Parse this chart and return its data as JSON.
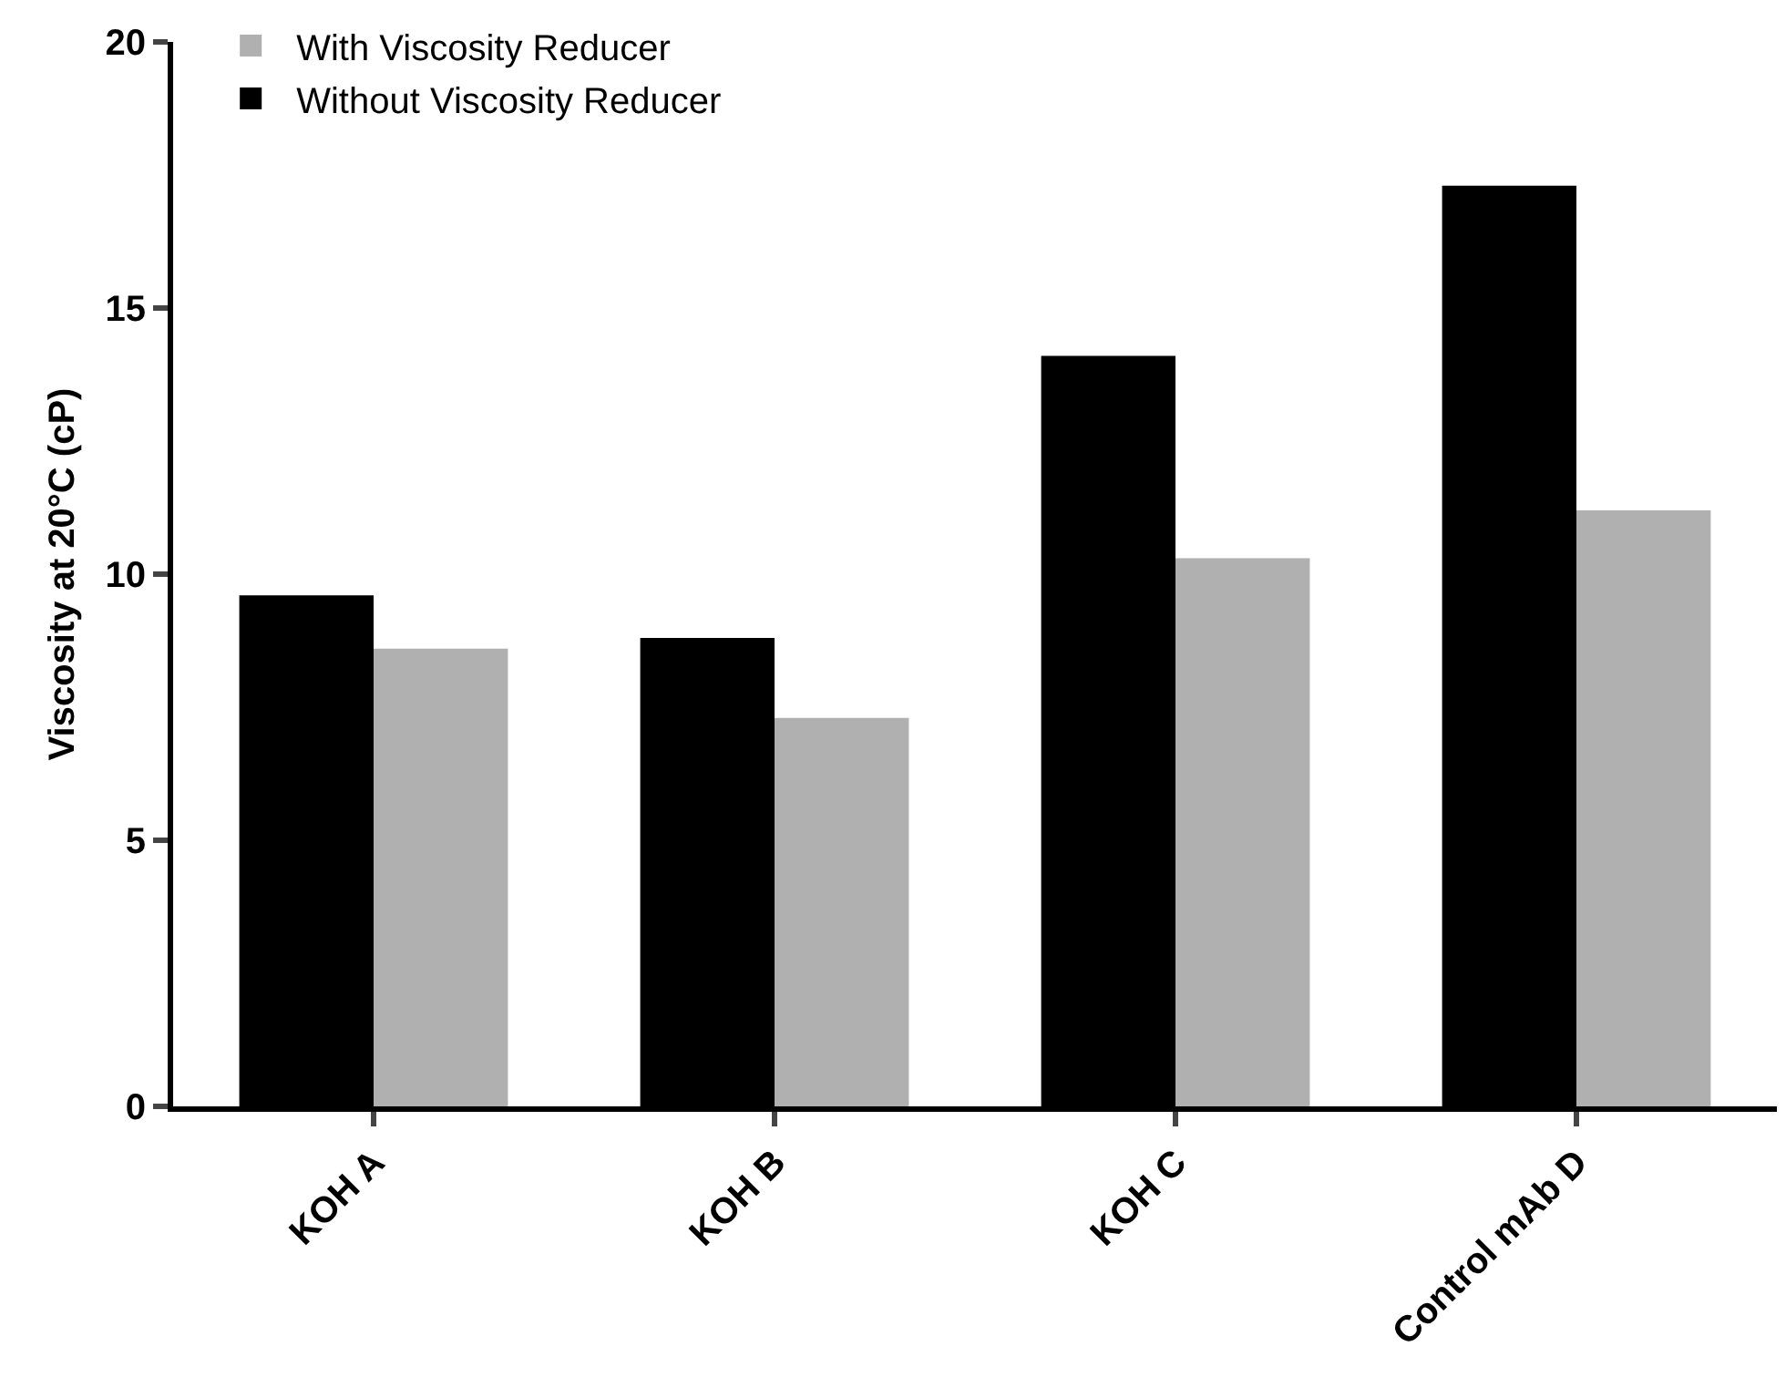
{
  "chart_data": {
    "type": "bar",
    "ylabel": "Viscosity at 20°C (cP)",
    "categories": [
      "KOH A",
      "KOH B",
      "KOH C",
      "Control mAb D"
    ],
    "series": [
      {
        "name": "Without Viscosity Reducer",
        "color": "#000000",
        "values": [
          9.6,
          8.8,
          14.1,
          17.3
        ]
      },
      {
        "name": "With Viscosity Reducer",
        "color": "#b0b0b0",
        "values": [
          8.6,
          7.3,
          10.3,
          11.2
        ]
      }
    ],
    "ylim": [
      0,
      20
    ],
    "yticks": [
      0,
      5,
      10,
      15,
      20
    ],
    "grid": false,
    "legend": "top left"
  }
}
